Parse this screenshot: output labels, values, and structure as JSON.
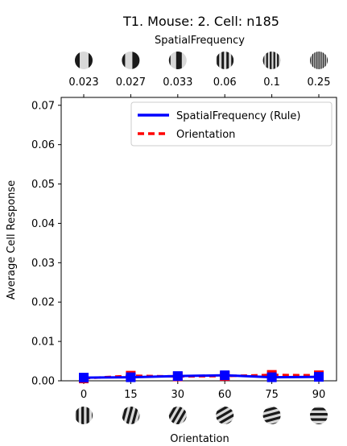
{
  "chart_data": {
    "type": "line",
    "title": "T1. Mouse: 2. Cell: n185",
    "top_axis": {
      "label": "SpatialFrequency",
      "ticks": [
        "0.023",
        "0.027",
        "0.033",
        "0.06",
        "0.1",
        "0.25"
      ],
      "tick_colors": [
        "#000000",
        "#000000",
        "#000000",
        "#008000",
        "#008000",
        "#008000"
      ]
    },
    "x_axis": {
      "label": "Orientation",
      "ticks": [
        "0",
        "15",
        "30",
        "60",
        "75",
        "90"
      ]
    },
    "y_axis": {
      "label": "Average Cell Response",
      "ticks": [
        "0.00",
        "0.01",
        "0.02",
        "0.03",
        "0.04",
        "0.05",
        "0.06",
        "0.07"
      ],
      "ylim": [
        0,
        0.072
      ]
    },
    "legend": {
      "placement": "top-right"
    },
    "series": [
      {
        "name": "SpatialFrequency (Rule)",
        "color": "#0000ff",
        "style": "solid",
        "marker": "square",
        "values": [
          0.0008,
          0.0009,
          0.0012,
          0.0014,
          0.0009,
          0.001
        ]
      },
      {
        "name": "Orientation",
        "color": "#ff0000",
        "style": "dashed",
        "marker": "square",
        "values": [
          0.0006,
          0.0013,
          0.0011,
          0.0012,
          0.0015,
          0.0014
        ]
      }
    ],
    "grid": false
  }
}
